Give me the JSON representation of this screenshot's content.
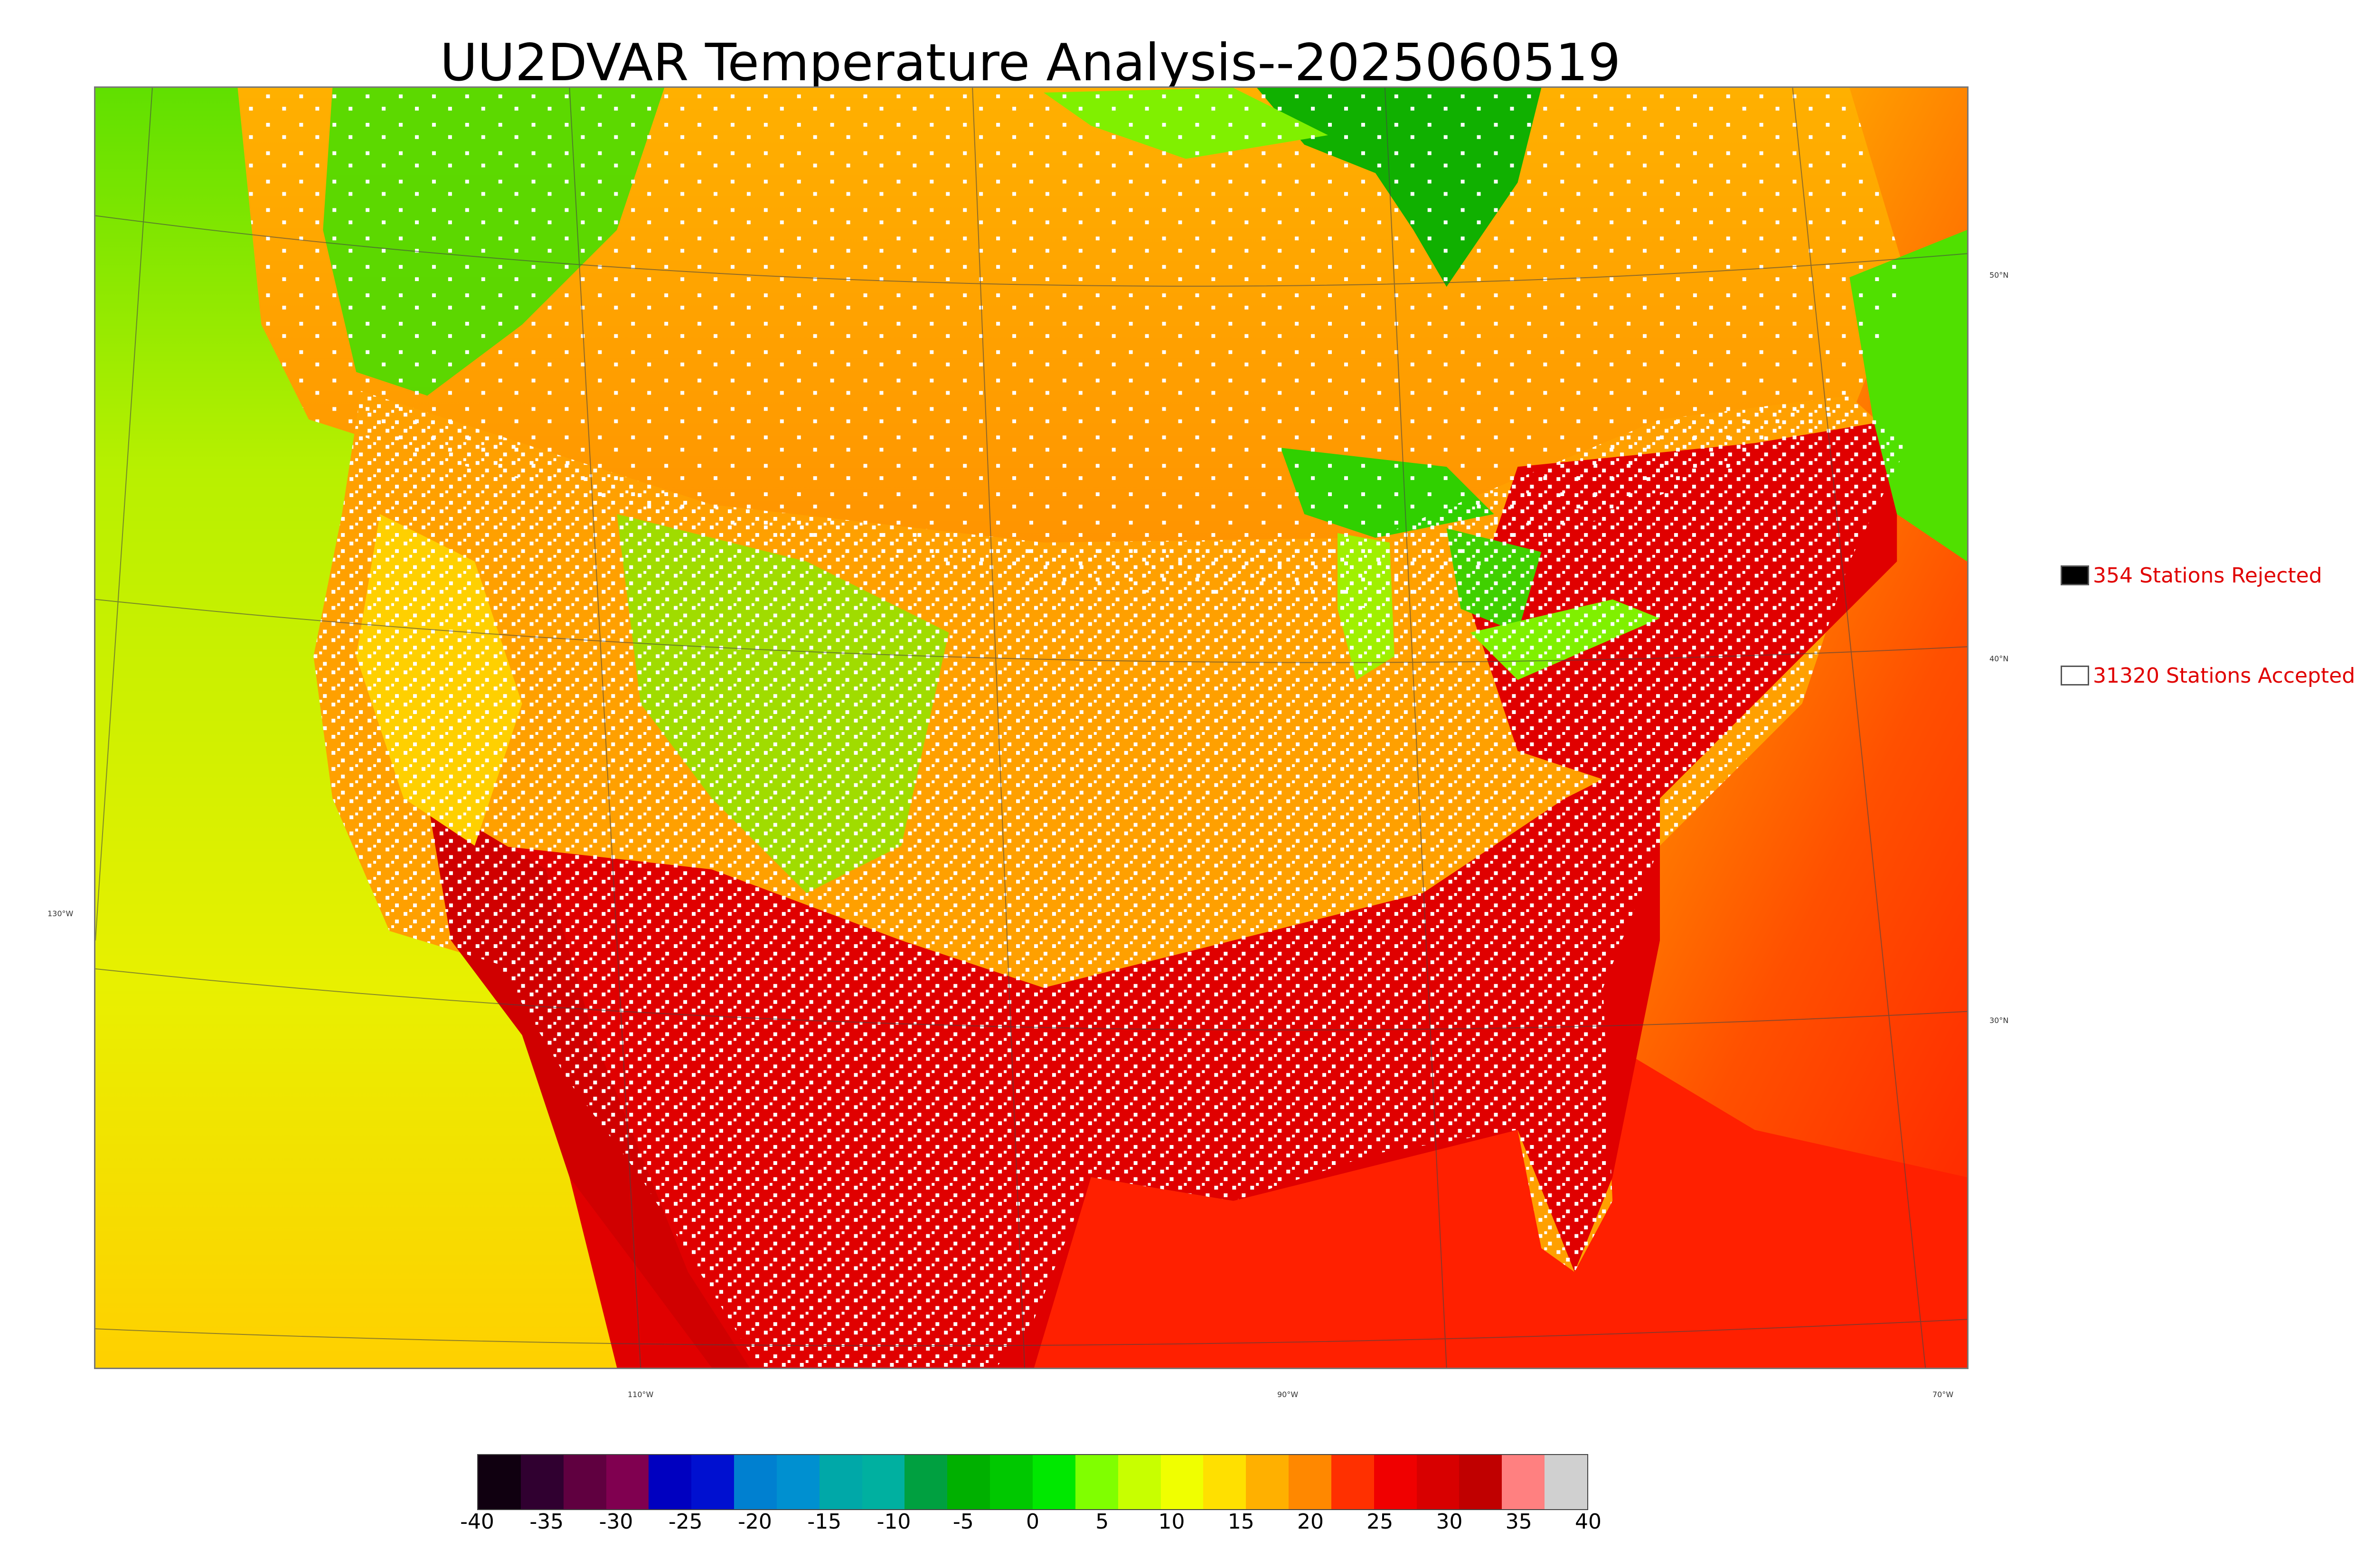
{
  "title": "UU2DVAR Temperature Analysis--2025060519",
  "map": {
    "lat_labels": [
      "50°N",
      "40°N",
      "30°N"
    ],
    "lon_labels": [
      "130°W",
      "110°W",
      "90°W",
      "70°W"
    ]
  },
  "legend": {
    "rejected": {
      "label": "354 Stations Rejected",
      "color": "#000000"
    },
    "accepted": {
      "label": "31320 Stations Accepted",
      "color": "#ffffff"
    }
  },
  "colorbar": {
    "ticks": [
      "-40",
      "-35",
      "-30",
      "-25",
      "-20",
      "-15",
      "-10",
      "-5",
      "0",
      "5",
      "10",
      "15",
      "20",
      "25",
      "30",
      "35",
      "40"
    ],
    "colors": [
      "#100010",
      "#300030",
      "#600040",
      "#800050",
      "#0000c0",
      "#0010d0",
      "#0080d0",
      "#0090d0",
      "#00a8a8",
      "#00b0a0",
      "#00a040",
      "#00b000",
      "#00c800",
      "#00e800",
      "#80ff00",
      "#c8ff00",
      "#f0ff00",
      "#ffe000",
      "#ffb000",
      "#ff8800",
      "#ff3000",
      "#f00000",
      "#d80000",
      "#c00000",
      "#ff8080",
      "#d0d0d0"
    ]
  },
  "colors": {
    "ocean_cool": "#d8f000",
    "land_warm": "#ffa000",
    "hot": "#e00000",
    "green": "#40e000",
    "lake": "#20c000"
  }
}
